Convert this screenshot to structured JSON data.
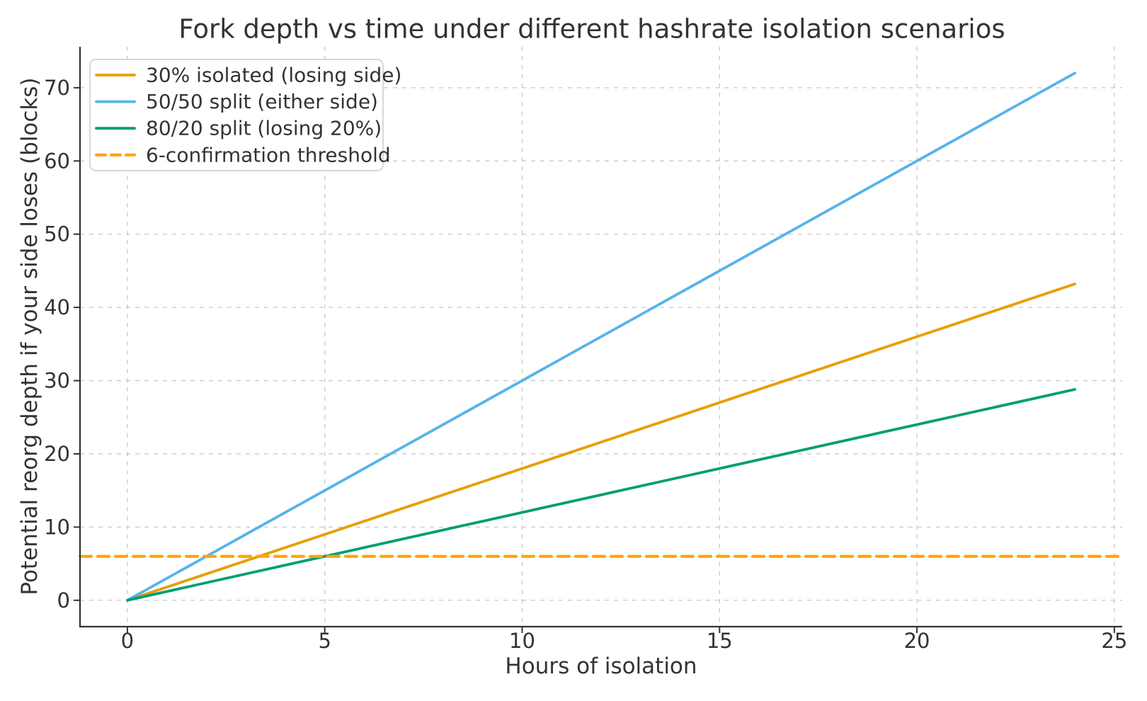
{
  "figure": {
    "background_color": "#ffffff",
    "text_color": "#333333",
    "grid_color": "#c9c9c9",
    "spine_color": "#333333"
  },
  "chart_data": {
    "type": "line",
    "title": "Fork depth vs time under different hashrate isolation scenarios",
    "xlabel": "Hours of isolation",
    "ylabel": "Potential reorg depth if your side loses (blocks)",
    "xlim": [
      -1.2,
      25.2
    ],
    "ylim": [
      -3.6,
      75.6
    ],
    "xticks": [
      0,
      5,
      10,
      15,
      20,
      25
    ],
    "yticks": [
      0,
      10,
      20,
      30,
      40,
      50,
      60,
      70
    ],
    "grid": true,
    "grid_style": "dashed",
    "legend_position": "upper-left",
    "x_hours": [
      0,
      1,
      2,
      3,
      4,
      5,
      6,
      7,
      8,
      9,
      10,
      11,
      12,
      13,
      14,
      15,
      16,
      17,
      18,
      19,
      20,
      21,
      22,
      23,
      24
    ],
    "series": [
      {
        "name": "30% isolated (losing side)",
        "color": "#E69F00",
        "line_style": "solid",
        "type": "line",
        "values": [
          0,
          1.8,
          3.6,
          5.4,
          7.2,
          9,
          10.8,
          12.6,
          14.4,
          16.2,
          18,
          19.8,
          21.6,
          23.4,
          25.2,
          27,
          28.8,
          30.6,
          32.4,
          34.2,
          36,
          37.8,
          39.6,
          41.4,
          43.2
        ]
      },
      {
        "name": "50/50 split (either side)",
        "color": "#56B4E9",
        "line_style": "solid",
        "type": "line",
        "values": [
          0,
          3,
          6,
          9,
          12,
          15,
          18,
          21,
          24,
          27,
          30,
          33,
          36,
          39,
          42,
          45,
          48,
          51,
          54,
          57,
          60,
          63,
          66,
          69,
          72
        ]
      },
      {
        "name": "80/20 split (losing 20%)",
        "color": "#009E73",
        "line_style": "solid",
        "type": "line",
        "values": [
          0,
          1.2,
          2.4,
          3.6,
          4.8,
          6,
          7.2,
          8.4,
          9.6,
          10.8,
          12,
          13.2,
          14.4,
          15.6,
          16.8,
          18,
          19.2,
          20.4,
          21.6,
          22.8,
          24,
          25.2,
          26.4,
          27.6,
          28.8
        ]
      },
      {
        "name": "6-confirmation threshold",
        "color": "#FFA500",
        "line_style": "dashed",
        "type": "hline",
        "y": 6
      }
    ]
  }
}
